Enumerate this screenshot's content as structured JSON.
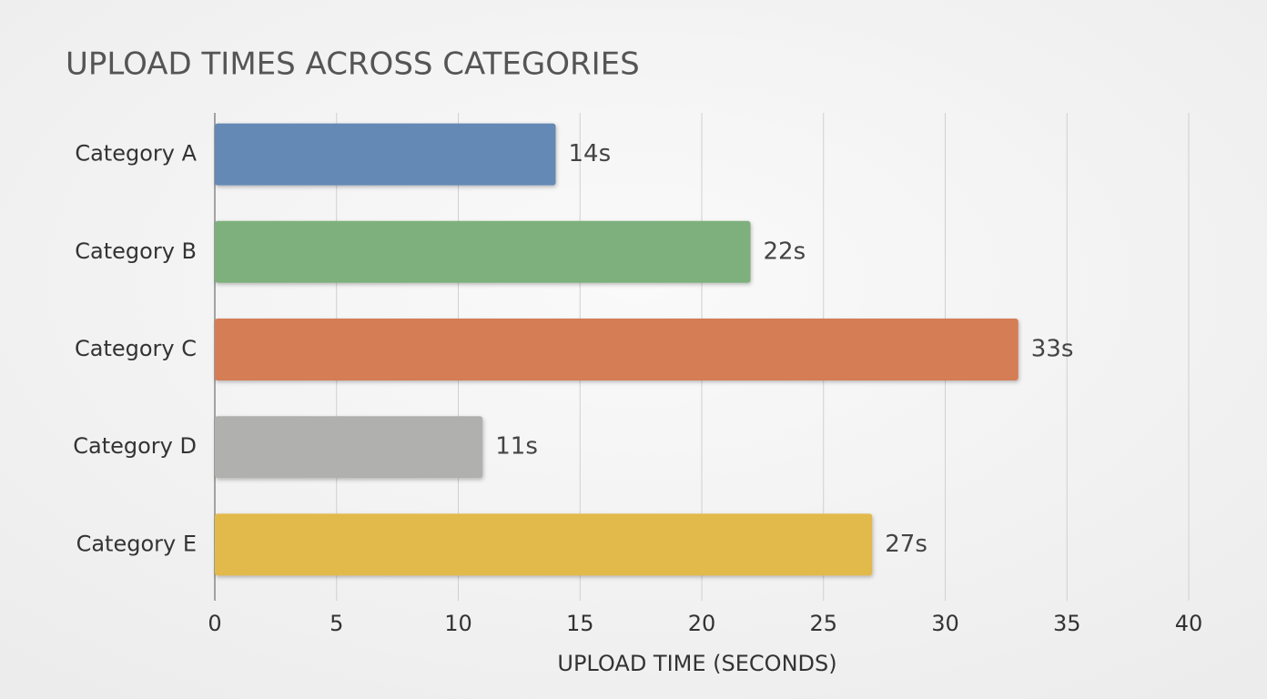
{
  "chart_data": {
    "type": "hbar",
    "title": "UPLOAD TIMES ACROSS CATEGORIES",
    "x_label": "UPLOAD TIME (SECONDS)",
    "categories": [
      "Category A",
      "Category B",
      "Category C",
      "Category D",
      "Category E"
    ],
    "values": [
      14,
      22,
      33,
      11,
      27
    ],
    "value_labels": [
      "14s",
      "22s",
      "33s",
      "11s",
      "27s"
    ],
    "colors": [
      "#6389b4",
      "#7db07c",
      "#d57d55",
      "#b0b0ae",
      "#e2b94c"
    ],
    "xlim": [
      0,
      40
    ],
    "xticks": [
      0,
      5,
      10,
      15,
      20,
      25,
      30,
      35,
      40
    ],
    "grid": true
  }
}
